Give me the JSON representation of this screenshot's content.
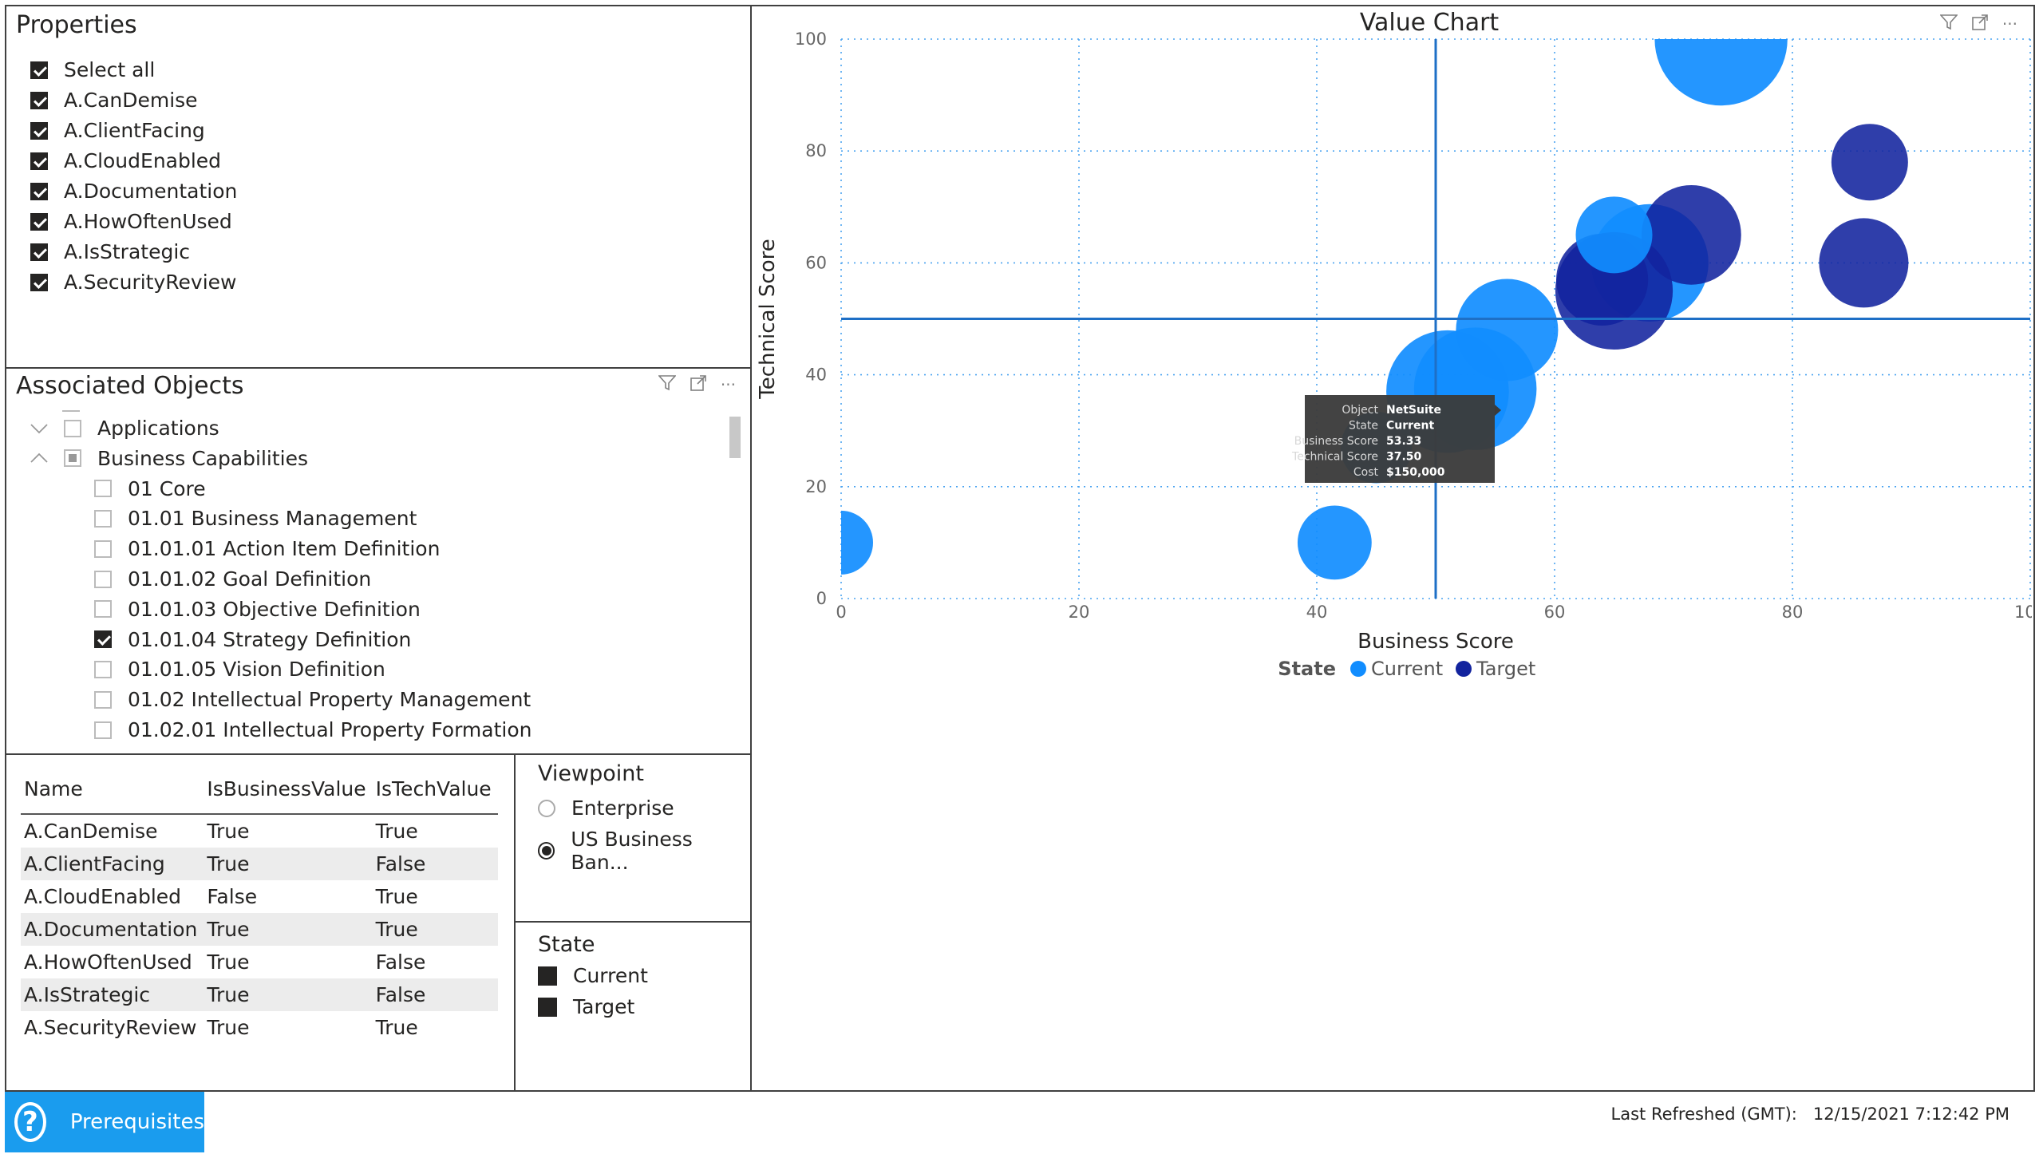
{
  "properties": {
    "title": "Properties",
    "items": [
      {
        "label": "Select all",
        "checked": true
      },
      {
        "label": "A.CanDemise",
        "checked": true
      },
      {
        "label": "A.ClientFacing",
        "checked": true
      },
      {
        "label": "A.CloudEnabled",
        "checked": true
      },
      {
        "label": "A.Documentation",
        "checked": true
      },
      {
        "label": "A.HowOftenUsed",
        "checked": true
      },
      {
        "label": "A.IsStrategic",
        "checked": true
      },
      {
        "label": "A.SecurityReview",
        "checked": true
      }
    ]
  },
  "associated": {
    "title": "Associated Objects",
    "items": [
      {
        "label": "Applications",
        "level": 0,
        "expander": "chevron-down",
        "state": "empty"
      },
      {
        "label": "Business Capabilities",
        "level": 0,
        "expander": "chevron-up",
        "state": "partial"
      },
      {
        "label": "01 Core",
        "level": 1,
        "state": "empty"
      },
      {
        "label": "01.01 Business Management",
        "level": 1,
        "state": "empty"
      },
      {
        "label": "01.01.01 Action Item Definition",
        "level": 1,
        "state": "empty"
      },
      {
        "label": "01.01.02 Goal Definition",
        "level": 1,
        "state": "empty"
      },
      {
        "label": "01.01.03 Objective Definition",
        "level": 1,
        "state": "empty"
      },
      {
        "label": "01.01.04 Strategy Definition",
        "level": 1,
        "state": "checked"
      },
      {
        "label": "01.01.05 Vision Definition",
        "level": 1,
        "state": "empty"
      },
      {
        "label": "01.02 Intellectual Property Management",
        "level": 1,
        "state": "empty"
      },
      {
        "label": "01.02.01 Intellectual Property Formation",
        "level": 1,
        "state": "empty"
      }
    ]
  },
  "table": {
    "headers": [
      "Name",
      "IsBusinessValue",
      "IsTechValue"
    ],
    "rows": [
      [
        "A.CanDemise",
        "True",
        "True"
      ],
      [
        "A.ClientFacing",
        "True",
        "False"
      ],
      [
        "A.CloudEnabled",
        "False",
        "True"
      ],
      [
        "A.Documentation",
        "True",
        "True"
      ],
      [
        "A.HowOftenUsed",
        "True",
        "False"
      ],
      [
        "A.IsStrategic",
        "True",
        "False"
      ],
      [
        "A.SecurityReview",
        "True",
        "True"
      ]
    ]
  },
  "viewpoint": {
    "title": "Viewpoint",
    "options": [
      {
        "label": "Enterprise",
        "selected": false
      },
      {
        "label": "US Business Ban...",
        "selected": true
      }
    ]
  },
  "state_filter": {
    "title": "State",
    "options": [
      "Current",
      "Target"
    ]
  },
  "chart_data": {
    "type": "scatter",
    "title": "Value Chart",
    "xlabel": "Business Score",
    "ylabel": "Technical Score",
    "xlim": [
      0,
      100
    ],
    "ylim": [
      0,
      100
    ],
    "xticks": [
      0,
      20,
      40,
      60,
      80,
      100
    ],
    "yticks": [
      0,
      20,
      40,
      60,
      80,
      100
    ],
    "grid": true,
    "legend_title": "State",
    "legend_position": "bottom-center",
    "reference_lines": {
      "x": 50,
      "y": 50
    },
    "series": [
      {
        "name": "Current",
        "color": "#118DFF",
        "points": [
          {
            "x": 74,
            "y": 100,
            "size": 52
          },
          {
            "x": 65,
            "y": 65,
            "size": 30
          },
          {
            "x": 68,
            "y": 60,
            "size": 46
          },
          {
            "x": 56,
            "y": 48,
            "size": 40
          },
          {
            "x": 53.33,
            "y": 37.5,
            "size": 48
          },
          {
            "x": 51,
            "y": 37,
            "size": 48
          },
          {
            "x": 45,
            "y": 27,
            "size": 28
          },
          {
            "x": 41.5,
            "y": 10,
            "size": 29
          },
          {
            "x": 0,
            "y": 10,
            "size": 25
          }
        ]
      },
      {
        "name": "Target",
        "color": "#12239E",
        "points": [
          {
            "x": 86.5,
            "y": 78,
            "size": 30
          },
          {
            "x": 86,
            "y": 60,
            "size": 35
          },
          {
            "x": 71.5,
            "y": 65,
            "size": 39
          },
          {
            "x": 65,
            "y": 55,
            "size": 46
          },
          {
            "x": 64,
            "y": 57,
            "size": 36
          }
        ]
      }
    ]
  },
  "tooltip": {
    "rows": [
      {
        "k": "Object",
        "v": "NetSuite"
      },
      {
        "k": "State",
        "v": "Current"
      },
      {
        "k": "Business Score",
        "v": "53.33"
      },
      {
        "k": "Technical Score",
        "v": "37.50"
      },
      {
        "k": "Cost",
        "v": "$150,000"
      }
    ]
  },
  "footer": {
    "prerequisites_label": "Prerequisites",
    "refreshed_label": "Last Refreshed (GMT):",
    "refreshed_value": "12/15/2021 7:12:42 PM"
  },
  "colors": {
    "accent": "#118DFF",
    "target": "#12239E",
    "button_bg": "#1A9CEE"
  }
}
